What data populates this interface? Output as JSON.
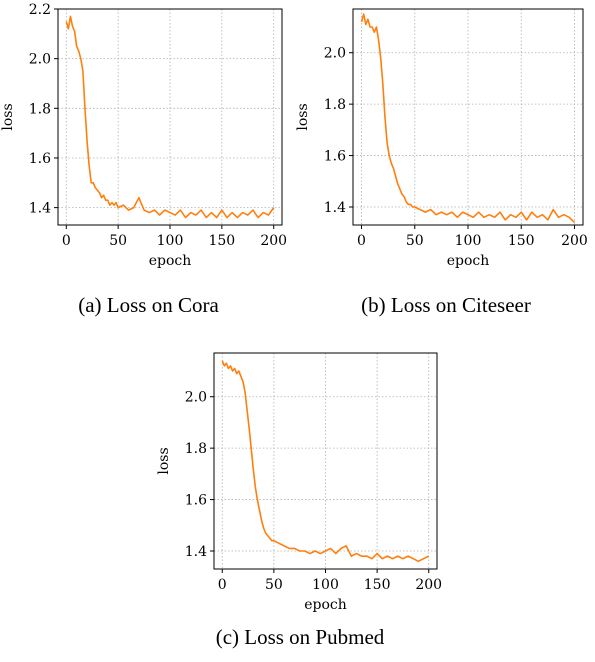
{
  "chart_data": [
    {
      "type": "line",
      "caption": "(a) Loss on Cora",
      "xlabel": "epoch",
      "ylabel": "loss",
      "xlim": [
        -8,
        208
      ],
      "ylim": [
        1.33,
        2.2
      ],
      "xticks": [
        0,
        50,
        100,
        150,
        200
      ],
      "yticks": [
        1.4,
        1.6,
        1.8,
        2.0,
        2.2
      ],
      "ytick_labels": [
        "1.4",
        "1.6",
        "1.8",
        "2.0",
        "2.2"
      ],
      "grid": true,
      "color": "#ff7f0e",
      "x": [
        0,
        2,
        4,
        6,
        8,
        10,
        12,
        14,
        16,
        18,
        20,
        22,
        24,
        26,
        28,
        30,
        32,
        34,
        36,
        38,
        40,
        42,
        44,
        46,
        48,
        50,
        55,
        60,
        65,
        70,
        75,
        80,
        85,
        90,
        95,
        100,
        105,
        110,
        115,
        120,
        125,
        130,
        135,
        140,
        145,
        150,
        155,
        160,
        165,
        170,
        175,
        180,
        185,
        190,
        195,
        200
      ],
      "y": [
        2.15,
        2.12,
        2.17,
        2.13,
        2.11,
        2.05,
        2.03,
        2.0,
        1.95,
        1.8,
        1.67,
        1.57,
        1.5,
        1.5,
        1.48,
        1.47,
        1.46,
        1.44,
        1.45,
        1.43,
        1.43,
        1.41,
        1.42,
        1.41,
        1.42,
        1.4,
        1.41,
        1.39,
        1.4,
        1.44,
        1.39,
        1.38,
        1.39,
        1.37,
        1.39,
        1.38,
        1.37,
        1.39,
        1.36,
        1.38,
        1.37,
        1.39,
        1.36,
        1.38,
        1.36,
        1.39,
        1.36,
        1.38,
        1.36,
        1.38,
        1.37,
        1.39,
        1.36,
        1.38,
        1.37,
        1.4
      ]
    },
    {
      "type": "line",
      "caption": "(b) Loss on Citeseer",
      "xlabel": "epoch",
      "ylabel": "loss",
      "xlim": [
        -8,
        208
      ],
      "ylim": [
        1.33,
        2.17
      ],
      "xticks": [
        0,
        50,
        100,
        150,
        200
      ],
      "yticks": [
        1.4,
        1.6,
        1.8,
        2.0
      ],
      "ytick_labels": [
        "1.4",
        "1.6",
        "1.8",
        "2.0"
      ],
      "grid": true,
      "color": "#ff7f0e",
      "x": [
        0,
        2,
        4,
        6,
        8,
        10,
        12,
        14,
        16,
        18,
        20,
        22,
        24,
        26,
        28,
        30,
        32,
        34,
        36,
        38,
        40,
        42,
        44,
        46,
        48,
        50,
        55,
        60,
        65,
        70,
        75,
        80,
        85,
        90,
        95,
        100,
        105,
        110,
        115,
        120,
        125,
        130,
        135,
        140,
        145,
        150,
        155,
        160,
        165,
        170,
        175,
        180,
        185,
        190,
        195,
        200
      ],
      "y": [
        2.12,
        2.15,
        2.11,
        2.13,
        2.1,
        2.1,
        2.08,
        2.1,
        2.05,
        1.98,
        1.88,
        1.75,
        1.65,
        1.6,
        1.57,
        1.55,
        1.52,
        1.49,
        1.47,
        1.45,
        1.44,
        1.42,
        1.41,
        1.41,
        1.4,
        1.4,
        1.39,
        1.38,
        1.39,
        1.37,
        1.38,
        1.37,
        1.38,
        1.36,
        1.38,
        1.37,
        1.36,
        1.38,
        1.36,
        1.37,
        1.36,
        1.38,
        1.35,
        1.37,
        1.36,
        1.38,
        1.35,
        1.38,
        1.36,
        1.37,
        1.35,
        1.39,
        1.36,
        1.37,
        1.36,
        1.34
      ]
    },
    {
      "type": "line",
      "caption": "(c) Loss on Pubmed",
      "xlabel": "epoch",
      "ylabel": "loss",
      "xlim": [
        -8,
        208
      ],
      "ylim": [
        1.33,
        2.17
      ],
      "xticks": [
        0,
        50,
        100,
        150,
        200
      ],
      "yticks": [
        1.4,
        1.6,
        1.8,
        2.0
      ],
      "ytick_labels": [
        "1.4",
        "1.6",
        "1.8",
        "2.0"
      ],
      "grid": true,
      "color": "#ff7f0e",
      "x": [
        0,
        2,
        4,
        6,
        8,
        10,
        12,
        14,
        16,
        18,
        20,
        22,
        24,
        26,
        28,
        30,
        32,
        34,
        36,
        38,
        40,
        42,
        44,
        46,
        48,
        50,
        55,
        60,
        65,
        70,
        75,
        80,
        85,
        90,
        95,
        100,
        105,
        110,
        115,
        120,
        125,
        130,
        135,
        140,
        145,
        150,
        155,
        160,
        165,
        170,
        175,
        180,
        185,
        190,
        195,
        200
      ],
      "y": [
        2.14,
        2.12,
        2.13,
        2.11,
        2.12,
        2.1,
        2.11,
        2.09,
        2.1,
        2.08,
        2.06,
        2.02,
        1.95,
        1.88,
        1.8,
        1.72,
        1.65,
        1.6,
        1.56,
        1.52,
        1.49,
        1.47,
        1.46,
        1.45,
        1.44,
        1.44,
        1.43,
        1.42,
        1.41,
        1.41,
        1.4,
        1.4,
        1.39,
        1.4,
        1.39,
        1.4,
        1.41,
        1.39,
        1.41,
        1.42,
        1.38,
        1.39,
        1.38,
        1.38,
        1.37,
        1.39,
        1.37,
        1.38,
        1.37,
        1.38,
        1.37,
        1.38,
        1.37,
        1.36,
        1.37,
        1.38
      ]
    }
  ]
}
